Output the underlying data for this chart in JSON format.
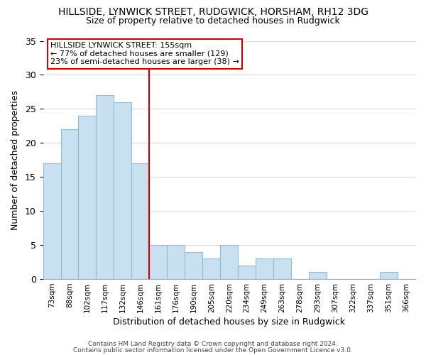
{
  "title": "HILLSIDE, LYNWICK STREET, RUDGWICK, HORSHAM, RH12 3DG",
  "subtitle": "Size of property relative to detached houses in Rudgwick",
  "xlabel": "Distribution of detached houses by size in Rudgwick",
  "ylabel": "Number of detached properties",
  "bar_labels": [
    "73sqm",
    "88sqm",
    "102sqm",
    "117sqm",
    "132sqm",
    "146sqm",
    "161sqm",
    "176sqm",
    "190sqm",
    "205sqm",
    "220sqm",
    "234sqm",
    "249sqm",
    "263sqm",
    "278sqm",
    "293sqm",
    "307sqm",
    "322sqm",
    "337sqm",
    "351sqm",
    "366sqm"
  ],
  "bar_values": [
    17,
    22,
    24,
    27,
    26,
    17,
    5,
    5,
    4,
    3,
    5,
    2,
    3,
    3,
    0,
    1,
    0,
    0,
    0,
    1,
    0
  ],
  "bar_color": "#c8e0f0",
  "bar_edge_color": "#90bcd8",
  "vline_color": "#cc0000",
  "annotation_title": "HILLSIDE LYNWICK STREET: 155sqm",
  "annotation_line1": "← 77% of detached houses are smaller (129)",
  "annotation_line2": "23% of semi-detached houses are larger (38) →",
  "annotation_box_color": "#ffffff",
  "annotation_box_edge_color": "#cc0000",
  "ylim": [
    0,
    35
  ],
  "yticks": [
    0,
    5,
    10,
    15,
    20,
    25,
    30,
    35
  ],
  "footer1": "Contains HM Land Registry data © Crown copyright and database right 2024.",
  "footer2": "Contains public sector information licensed under the Open Government Licence v3.0.",
  "background_color": "#ffffff",
  "grid_color": "#d8d8d8",
  "title_fontsize": 10,
  "subtitle_fontsize": 9,
  "xlabel_fontsize": 9,
  "ylabel_fontsize": 9,
  "tick_fontsize": 7.5,
  "annotation_fontsize": 8,
  "footer_fontsize": 6.5
}
